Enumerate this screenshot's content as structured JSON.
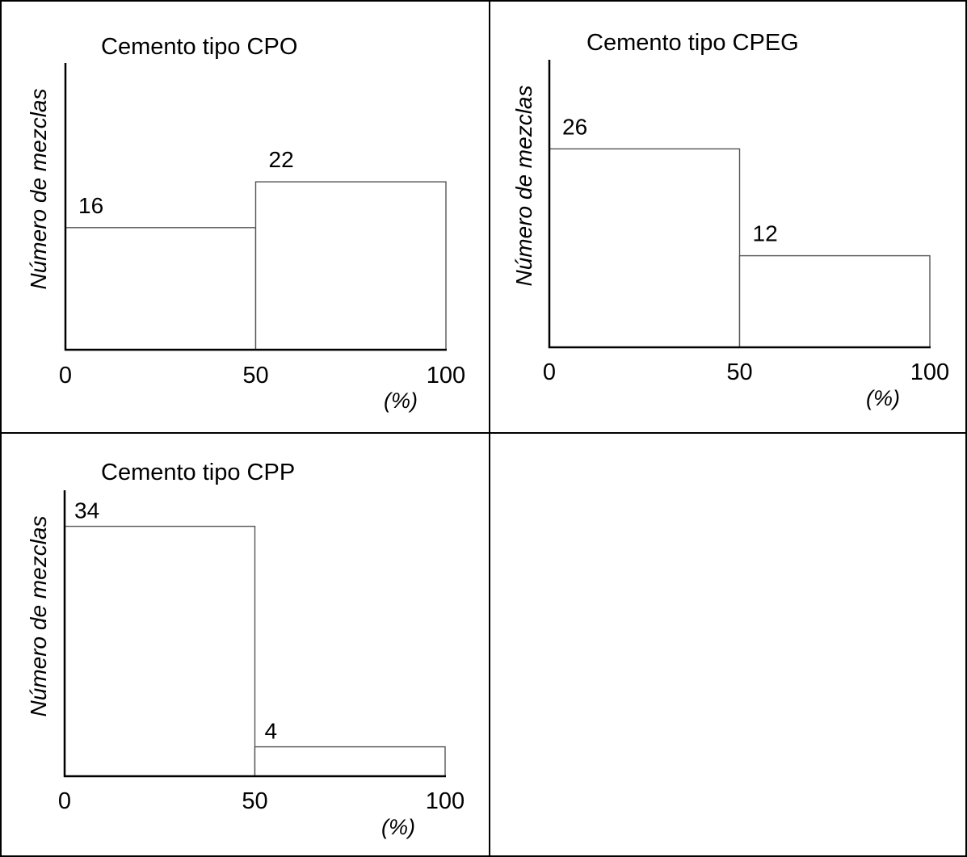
{
  "chart_data": [
    {
      "type": "bar",
      "title": "Cemento tipo CPO",
      "ylabel": "Número de mezclas",
      "xlabel": "(%)",
      "x_ticks": [
        "0",
        "50",
        "100"
      ],
      "bins": [
        [
          0,
          50
        ],
        [
          50,
          100
        ]
      ],
      "values": [
        16,
        22
      ],
      "data_labels": [
        "16",
        "22"
      ],
      "xlim": [
        0,
        100
      ],
      "grid": false,
      "legend": "none"
    },
    {
      "type": "bar",
      "title": "Cemento tipo CPEG",
      "ylabel": "Número de mezclas",
      "xlabel": "(%)",
      "x_ticks": [
        "0",
        "50",
        "100"
      ],
      "bins": [
        [
          0,
          50
        ],
        [
          50,
          100
        ]
      ],
      "values": [
        26,
        12
      ],
      "data_labels": [
        "26",
        "12"
      ],
      "xlim": [
        0,
        100
      ],
      "grid": false,
      "legend": "none"
    },
    {
      "type": "bar",
      "title": "Cemento tipo CPP",
      "ylabel": "Número de mezclas",
      "xlabel": "(%)",
      "x_ticks": [
        "0",
        "50",
        "100"
      ],
      "bins": [
        [
          0,
          50
        ],
        [
          50,
          100
        ]
      ],
      "values": [
        34,
        4
      ],
      "data_labels": [
        "34",
        "4"
      ],
      "xlim": [
        0,
        100
      ],
      "grid": false,
      "legend": "none"
    }
  ]
}
